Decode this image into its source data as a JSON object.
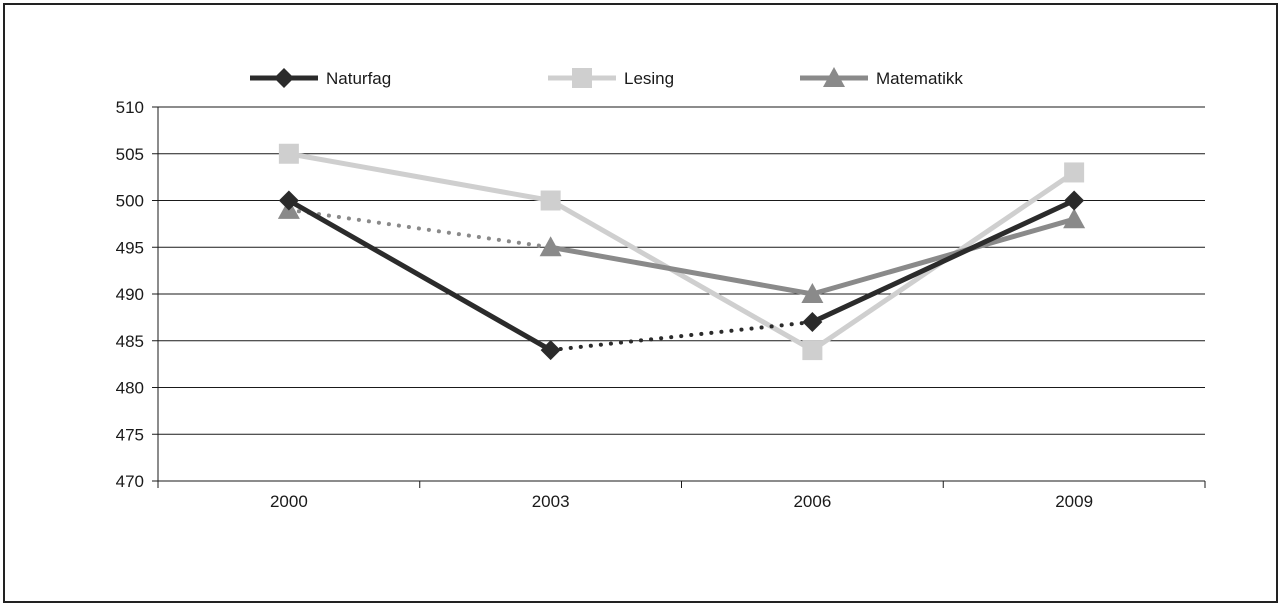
{
  "chart_data": {
    "type": "line",
    "categories": [
      "2000",
      "2003",
      "2006",
      "2009"
    ],
    "ylim": [
      470,
      510
    ],
    "yticks": [
      470,
      475,
      480,
      485,
      490,
      495,
      500,
      505,
      510
    ],
    "grid": true,
    "legend_position": "top",
    "series": [
      {
        "name": "Naturfag",
        "values": [
          500,
          484,
          487,
          500
        ],
        "color": "#2b2b2b",
        "marker": "diamond",
        "dotted_segments": [
          1
        ]
      },
      {
        "name": "Lesing",
        "values": [
          505,
          500,
          484,
          503
        ],
        "color": "#cfcfcf",
        "marker": "square",
        "dotted_segments": []
      },
      {
        "name": "Matematikk",
        "values": [
          499,
          495,
          490,
          498
        ],
        "color": "#8a8a8a",
        "marker": "triangle",
        "dotted_segments": [
          0
        ]
      }
    ]
  }
}
